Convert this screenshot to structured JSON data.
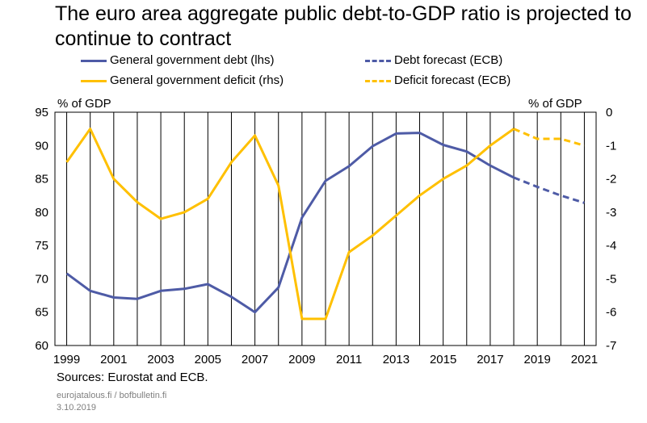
{
  "title": "The euro area aggregate public debt-to-GDP ratio is projected to continue to contract",
  "legend": [
    {
      "label": "General government debt (lhs)",
      "color": "#4E5BA6",
      "style": "solid"
    },
    {
      "label": "Debt forecast (ECB)",
      "color": "#4E5BA6",
      "style": "dashed"
    },
    {
      "label": "General government deficit (rhs)",
      "color": "#FFC000",
      "style": "solid"
    },
    {
      "label": "Deficit forecast (ECB)",
      "color": "#FFC000",
      "style": "dashed"
    }
  ],
  "footer": {
    "sources": "Sources: Eurostat and ECB.",
    "site": "eurojatalous.fi / bofbulletin.fi",
    "date": "3.10.2019"
  },
  "chart_data": {
    "type": "line",
    "y_left": {
      "label": "% of GDP",
      "range": [
        60,
        95
      ],
      "ticks": [
        "95",
        "90",
        "85",
        "80",
        "75",
        "70",
        "65",
        "60"
      ]
    },
    "y_right": {
      "label": "% of GDP",
      "range": [
        -7,
        0
      ],
      "ticks": [
        "0",
        "-1",
        "-2",
        "-3",
        "-4",
        "-5",
        "-6",
        "-7"
      ]
    },
    "x_range": [
      1998.5,
      2021.5
    ],
    "x_tick_labels": [
      "1999",
      "2001",
      "2003",
      "2005",
      "2007",
      "2009",
      "2011",
      "2013",
      "2015",
      "2017",
      "2019",
      "2021"
    ],
    "grid": "vertical",
    "series": [
      {
        "name": "General government debt (lhs)",
        "axis": "left",
        "color": "#4E5BA6",
        "style": "solid",
        "x": [
          1999,
          2000,
          2001,
          2002,
          2003,
          2004,
          2005,
          2006,
          2007,
          2008,
          2009,
          2010,
          2011,
          2012,
          2013,
          2014,
          2015,
          2016,
          2017,
          2018
        ],
        "values": [
          70.8,
          68.2,
          67.2,
          67.0,
          68.2,
          68.5,
          69.2,
          67.3,
          65.0,
          68.7,
          79.2,
          84.7,
          86.9,
          89.9,
          91.8,
          91.9,
          90.1,
          89.1,
          87.0,
          85.2
        ]
      },
      {
        "name": "Debt forecast (ECB)",
        "axis": "left",
        "color": "#4E5BA6",
        "style": "dashed",
        "x": [
          2018,
          2019,
          2020,
          2021
        ],
        "values": [
          85.2,
          83.8,
          82.5,
          81.4
        ]
      },
      {
        "name": "General government deficit (rhs)",
        "axis": "right",
        "color": "#FFC000",
        "style": "solid",
        "x": [
          1999,
          2000,
          2001,
          2002,
          2003,
          2004,
          2005,
          2006,
          2007,
          2008,
          2009,
          2010,
          2011,
          2012,
          2013,
          2014,
          2015,
          2016,
          2017,
          2018
        ],
        "values": [
          -1.5,
          -0.5,
          -2.0,
          -2.7,
          -3.2,
          -3.0,
          -2.6,
          -1.5,
          -0.7,
          -2.2,
          -6.2,
          -6.2,
          -4.2,
          -3.7,
          -3.1,
          -2.5,
          -2.0,
          -1.6,
          -1.0,
          -0.5
        ]
      },
      {
        "name": "Deficit forecast (ECB)",
        "axis": "right",
        "color": "#FFC000",
        "style": "dashed",
        "x": [
          2018,
          2019,
          2020,
          2021
        ],
        "values": [
          -0.5,
          -0.8,
          -0.8,
          -1.0
        ]
      }
    ]
  }
}
